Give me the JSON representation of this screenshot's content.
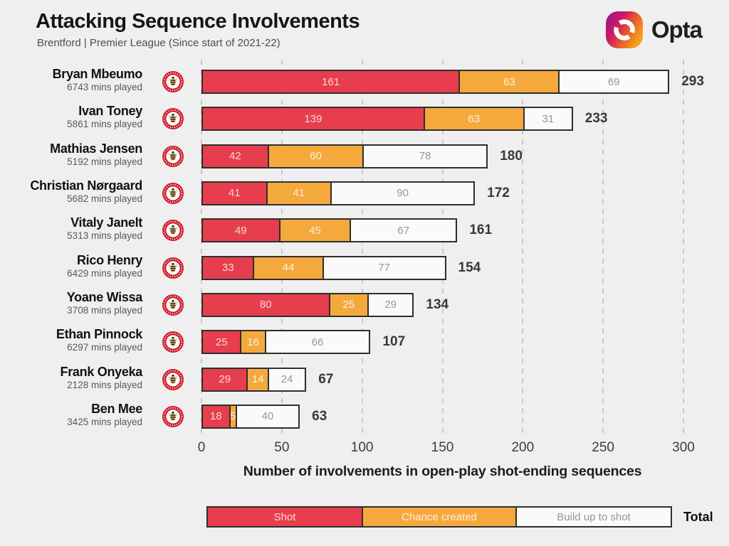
{
  "header": {
    "title": "Attacking Sequence Involvements",
    "subtitle": "Brentford | Premier League (Since start of 2021-22)",
    "brand": "Opta"
  },
  "chart_data": {
    "type": "bar",
    "orientation": "horizontal",
    "stacked": true,
    "title": "Attacking Sequence Involvements",
    "subtitle": "Brentford | Premier League (Since start of 2021-22)",
    "xlabel": "Number of involvements in open-play shot-ending sequences",
    "xlim": [
      0,
      300
    ],
    "x_ticks": [
      0,
      50,
      100,
      150,
      200,
      250,
      300
    ],
    "grid": "dashed-vertical",
    "legend_position": "bottom",
    "series_names": [
      "Shot",
      "Chance created",
      "Build up to shot"
    ],
    "colors": {
      "shot": "#e73e4e",
      "chance_created": "#f5a93d",
      "build_up_to_shot": "#fafafa",
      "segment_border": "#2e2e2e",
      "background": "#efeff0",
      "badge_red": "#d01e2a",
      "bee_yellow": "#e8a33d"
    },
    "players": [
      {
        "name": "Bryan Mbeumo",
        "mins": "6743 mins played",
        "shot": 161,
        "chance_created": 63,
        "build_up": 69,
        "total": 293
      },
      {
        "name": "Ivan Toney",
        "mins": "5861 mins played",
        "shot": 139,
        "chance_created": 63,
        "build_up": 31,
        "total": 233
      },
      {
        "name": "Mathias Jensen",
        "mins": "5192 mins played",
        "shot": 42,
        "chance_created": 60,
        "build_up": 78,
        "total": 180
      },
      {
        "name": "Christian Nørgaard",
        "mins": "5682 mins played",
        "shot": 41,
        "chance_created": 41,
        "build_up": 90,
        "total": 172
      },
      {
        "name": "Vitaly Janelt",
        "mins": "5313 mins played",
        "shot": 49,
        "chance_created": 45,
        "build_up": 67,
        "total": 161
      },
      {
        "name": "Rico Henry",
        "mins": "6429 mins played",
        "shot": 33,
        "chance_created": 44,
        "build_up": 77,
        "total": 154
      },
      {
        "name": "Yoane Wissa",
        "mins": "3708 mins played",
        "shot": 80,
        "chance_created": 25,
        "build_up": 29,
        "total": 134
      },
      {
        "name": "Ethan Pinnock",
        "mins": "6297 mins played",
        "shot": 25,
        "chance_created": 16,
        "build_up": 66,
        "total": 107
      },
      {
        "name": "Frank Onyeka",
        "mins": "2128 mins played",
        "shot": 29,
        "chance_created": 14,
        "build_up": 24,
        "total": 67
      },
      {
        "name": "Ben Mee",
        "mins": "3425 mins played",
        "shot": 18,
        "chance_created": 5,
        "build_up": 40,
        "total": 63
      }
    ],
    "legend": {
      "items": [
        "Shot",
        "Chance created",
        "Build up to shot"
      ],
      "total_label": "Total"
    }
  }
}
